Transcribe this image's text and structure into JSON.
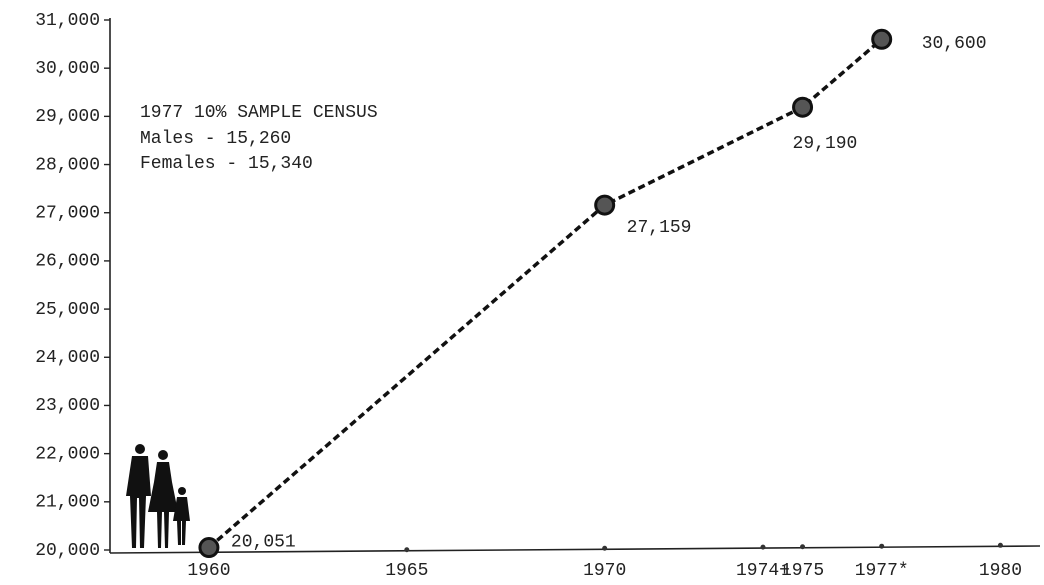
{
  "chart_data": {
    "type": "line",
    "annotations": [
      "1977 10% SAMPLE CENSUS",
      "Males - 15,260",
      "Females - 15,340"
    ],
    "x": [
      1960,
      1970,
      1975,
      1977
    ],
    "series": [
      {
        "color": "#111111",
        "values": [
          20051,
          27159,
          29190,
          30600
        ],
        "value_labels": [
          "20,051",
          "27,159",
          "29,190",
          "30,600"
        ]
      }
    ],
    "xlim": [
      1957.5,
      1981
    ],
    "xticks": [
      1960,
      1965,
      1970,
      {
        "value": 1974,
        "label": "1974+"
      },
      1975,
      {
        "value": 1977,
        "label": "1977*"
      },
      1980
    ],
    "ylim": [
      20000,
      31000
    ],
    "yticks": [
      {
        "value": 20000,
        "label": "20,000"
      },
      {
        "value": 21000,
        "label": "21,000"
      },
      {
        "value": 22000,
        "label": "22,000"
      },
      {
        "value": 23000,
        "label": "23,000"
      },
      {
        "value": 24000,
        "label": "24,000"
      },
      {
        "value": 25000,
        "label": "25,000"
      },
      {
        "value": 26000,
        "label": "26,000"
      },
      {
        "value": 27000,
        "label": "27,000"
      },
      {
        "value": 28000,
        "label": "28,000"
      },
      {
        "value": 29000,
        "label": "29,000"
      },
      {
        "value": 30000,
        "label": "30,000"
      },
      {
        "value": 31000,
        "label": "31,000"
      }
    ],
    "grid": false
  }
}
